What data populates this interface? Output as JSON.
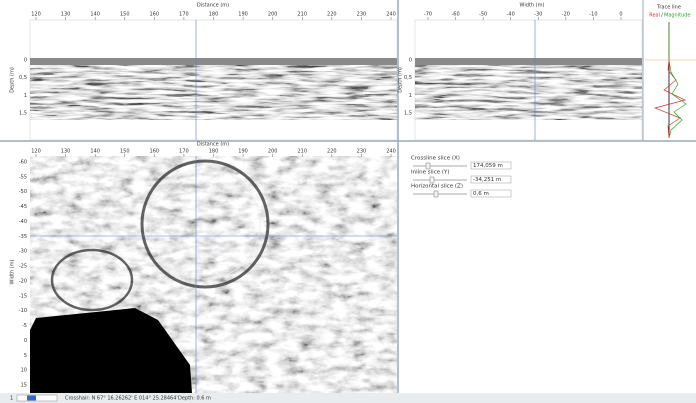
{
  "distance_profile": {
    "x_axis_title": "Distance (m)",
    "x_ticks": [
      "120",
      "130",
      "140",
      "150",
      "160",
      "170",
      "180",
      "190",
      "200",
      "210",
      "220",
      "230",
      "240"
    ],
    "y_axis_title": "Depth (m)",
    "y_ticks": [
      "0",
      "0,5",
      "1",
      "1,5"
    ]
  },
  "width_profile": {
    "x_axis_title": "Width (m)",
    "x_ticks": [
      "-70",
      "-60",
      "-50",
      "-40",
      "-30",
      "-20",
      "-10",
      "0"
    ],
    "y_axis_title": "Depth (m)",
    "y_ticks": [
      "0",
      "0,5",
      "1",
      "1,5"
    ]
  },
  "trace_panel": {
    "title": "Trace line",
    "legend_real": "Real",
    "legend_separator": "/",
    "legend_magnitude": "Magnitude"
  },
  "slice_map": {
    "x_axis_title": "Distance (m)",
    "x_ticks": [
      "120",
      "130",
      "140",
      "150",
      "160",
      "170",
      "180",
      "190",
      "200",
      "210",
      "220",
      "230",
      "240"
    ],
    "y_axis_title": "Width (m)",
    "y_ticks": [
      "-60",
      "-55",
      "-50",
      "-45",
      "-40",
      "-35",
      "-30",
      "-25",
      "-20",
      "-15",
      "-10",
      "-5",
      "0",
      "5",
      "10",
      "15"
    ]
  },
  "controls": [
    {
      "label": "Crossline slice (X)",
      "value": "174,059 m"
    },
    {
      "label": "Inline slice (Y)",
      "value": "-34,251 m"
    },
    {
      "label": "Horizontal slice (Z)",
      "value": "0,6 m"
    }
  ],
  "status_bar": {
    "page": "1",
    "crosshair": "Crosshair: N 67° 16.26262' E 014° 25.28464'",
    "depth": "Depth: 0.6 m"
  }
}
